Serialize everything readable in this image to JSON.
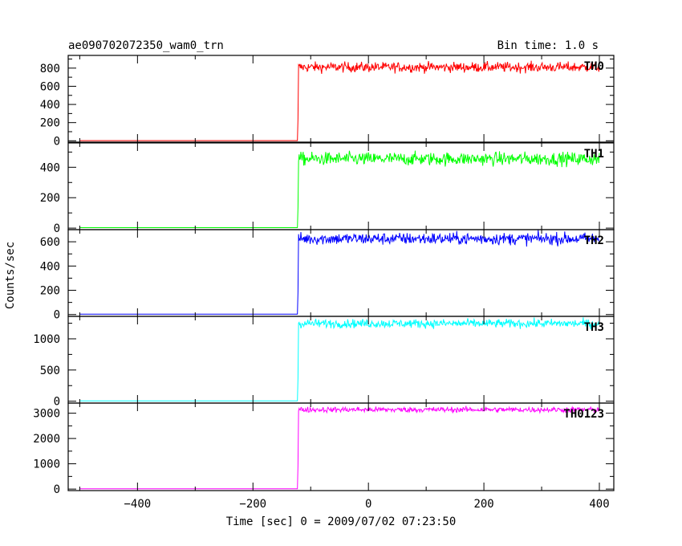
{
  "header": {
    "title": "ae090702072350_wam0_trn",
    "bin_time": "Bin time: 1.0 s"
  },
  "axes": {
    "ylabel": "Counts/sec",
    "xlabel": "Time [sec] 0 = 2009/07/02 07:23:50",
    "x_ticks": [
      "−400",
      "−200",
      "0",
      "200",
      "400"
    ]
  },
  "chart_data": {
    "type": "line",
    "xlim": [
      -520,
      425
    ],
    "x_ticks": [
      -400,
      -200,
      0,
      200,
      400
    ],
    "trigger_time": -122,
    "x_range": [
      -500,
      400
    ],
    "bin_time": 1.0,
    "panels": [
      {
        "name": "TH0",
        "color": "#ff0000",
        "ylim": [
          -15,
          940
        ],
        "y_ticks": [
          0,
          200,
          400,
          600,
          800
        ],
        "pre_level": 2,
        "post_level": 810,
        "noise": 28
      },
      {
        "name": "TH1",
        "color": "#00ff00",
        "ylim": [
          -10,
          560
        ],
        "y_ticks": [
          0,
          200,
          400
        ],
        "pre_level": 3,
        "post_level": 455,
        "noise": 22
      },
      {
        "name": "TH2",
        "color": "#0000ff",
        "ylim": [
          -15,
          700
        ],
        "y_ticks": [
          0,
          200,
          400,
          600
        ],
        "pre_level": 3,
        "post_level": 625,
        "noise": 25
      },
      {
        "name": "TH3",
        "color": "#00ffff",
        "ylim": [
          -30,
          1360
        ],
        "y_ticks": [
          0,
          500,
          1000
        ],
        "pre_level": 5,
        "post_level": 1245,
        "noise": 35
      },
      {
        "name": "TH0123",
        "color": "#ff00ff",
        "ylim": [
          -60,
          3400
        ],
        "y_ticks": [
          0,
          1000,
          2000,
          3000
        ],
        "pre_level": 10,
        "post_level": 3140,
        "noise": 55
      }
    ]
  }
}
